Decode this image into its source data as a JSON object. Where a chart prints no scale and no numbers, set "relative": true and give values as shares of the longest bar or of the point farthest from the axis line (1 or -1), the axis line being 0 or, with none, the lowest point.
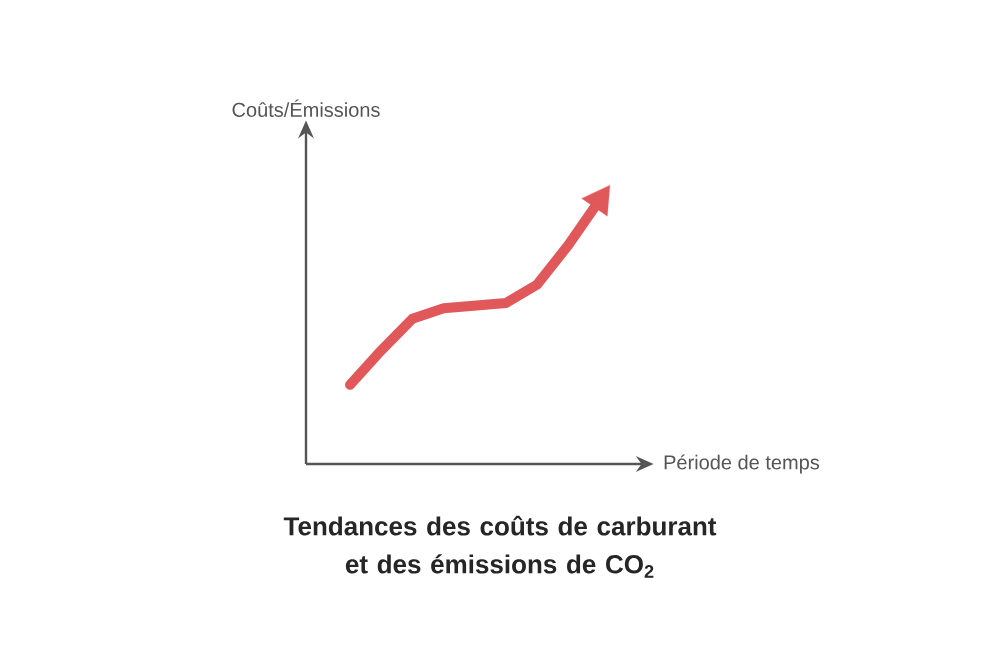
{
  "chart_data": {
    "type": "line",
    "title": "Tendances des coûts de carburant et des émissions de CO$_{2}$",
    "xlabel": "Période de temps",
    "ylabel": "Coûts/Émissions",
    "relative": true,
    "categories": [
      null,
      null,
      null,
      null,
      null,
      null,
      null,
      null,
      null
    ],
    "series": [
      {
        "color": "#e0585a",
        "values": [
          0.3,
          0.43,
          0.55,
          0.59,
          0.6,
          0.61,
          0.68,
          0.83,
          1.0
        ]
      }
    ]
  }
}
